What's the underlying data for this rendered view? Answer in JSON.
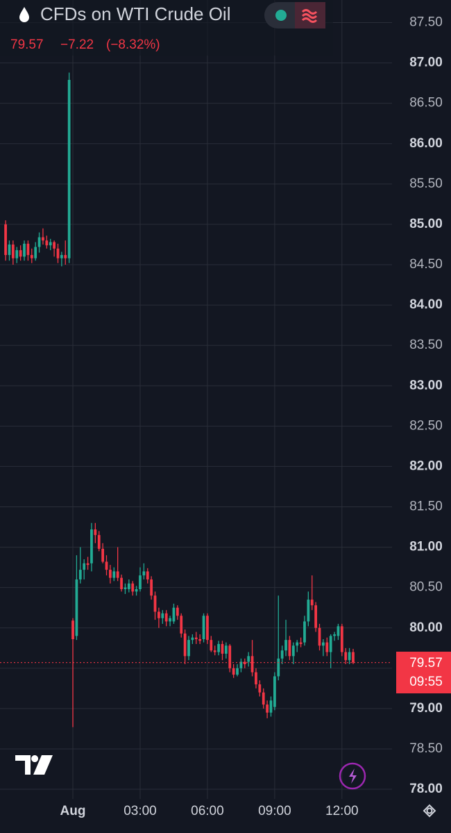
{
  "chart_data": {
    "type": "candlestick",
    "title": "CFDs on WTI Crude Oil",
    "last_price": 79.57,
    "change": "−7.22",
    "change_percent": "(−8.32%)",
    "countdown": "09:55",
    "up_color": "#22ab94",
    "down_color": "#f23645",
    "grid": true,
    "x": [
      -180,
      -170,
      -160,
      -150,
      -140,
      -130,
      -120,
      -110,
      -100,
      -90,
      -80,
      -70,
      -60,
      -50,
      -40,
      -30,
      -20,
      -10,
      0,
      10,
      20,
      30,
      40,
      50,
      60,
      70,
      80,
      90,
      100,
      110,
      120,
      130,
      140,
      150,
      160,
      170,
      180,
      190,
      200,
      210,
      220,
      230,
      240,
      250,
      260,
      270,
      280,
      290,
      300,
      310,
      320,
      330,
      340,
      350,
      360,
      370,
      380,
      390,
      400,
      410,
      420,
      430,
      440,
      450,
      460,
      470,
      480,
      490,
      500,
      510,
      520,
      530,
      540,
      550,
      560,
      570,
      580,
      590,
      600,
      610,
      620,
      630,
      640,
      650,
      660,
      670,
      680,
      690,
      700,
      710,
      720,
      730,
      740,
      750
    ],
    "open": [
      85.0,
      84.62,
      84.75,
      84.58,
      84.68,
      84.6,
      84.76,
      84.62,
      84.58,
      84.72,
      84.84,
      84.8,
      84.74,
      84.78,
      84.7,
      84.58,
      84.62,
      84.58,
      80.09,
      79.9,
      80.6,
      80.72,
      80.8,
      80.8,
      81.22,
      81.15,
      80.98,
      80.82,
      80.72,
      80.62,
      80.7,
      80.62,
      80.48,
      80.48,
      80.55,
      80.45,
      80.48,
      80.65,
      80.7,
      80.6,
      80.4,
      80.2,
      80.12,
      80.18,
      80.08,
      80.08,
      80.25,
      80.15,
      79.93,
      79.65,
      79.85,
      79.88,
      79.86,
      79.86,
      80.15,
      79.85,
      79.72,
      79.7,
      79.8,
      79.68,
      79.78,
      79.5,
      79.42,
      79.5,
      79.58,
      79.58,
      79.65,
      79.45,
      79.3,
      79.2,
      79.05,
      78.95,
      79.02,
      79.4,
      79.62,
      79.72,
      79.85,
      79.65,
      79.78,
      79.82,
      79.82,
      80.08,
      80.35,
      80.28,
      80.0,
      79.78,
      79.82,
      79.7,
      79.9,
      79.9,
      80.02,
      79.7,
      79.6,
      79.7
    ],
    "high": [
      85.05,
      84.8,
      84.8,
      84.72,
      84.74,
      84.8,
      84.8,
      84.7,
      84.78,
      84.9,
      84.95,
      84.86,
      84.82,
      84.8,
      84.76,
      84.66,
      84.8,
      86.88,
      80.12,
      80.9,
      81.0,
      80.85,
      80.88,
      81.3,
      81.3,
      81.2,
      81.05,
      80.9,
      80.78,
      80.75,
      81.0,
      80.66,
      80.55,
      80.6,
      80.58,
      80.52,
      80.75,
      80.8,
      80.74,
      80.64,
      80.45,
      80.25,
      80.22,
      80.22,
      80.15,
      80.3,
      80.28,
      80.18,
      79.98,
      79.9,
      79.92,
      79.95,
      79.92,
      80.18,
      80.18,
      79.9,
      79.78,
      79.84,
      79.84,
      79.82,
      79.8,
      79.55,
      79.55,
      79.62,
      79.62,
      79.7,
      79.85,
      79.5,
      79.35,
      79.25,
      79.1,
      79.15,
      79.45,
      80.4,
      79.78,
      80.1,
      79.9,
      79.82,
      79.85,
      79.88,
      80.15,
      80.45,
      80.65,
      80.32,
      80.05,
      79.86,
      79.88,
      79.92,
      79.95,
      80.05,
      80.05,
      79.75,
      79.75,
      79.74
    ],
    "low": [
      84.55,
      84.55,
      84.5,
      84.52,
      84.55,
      84.55,
      84.55,
      84.52,
      84.55,
      84.65,
      84.75,
      84.7,
      84.68,
      84.6,
      84.52,
      84.48,
      84.5,
      84.52,
      78.77,
      79.85,
      80.55,
      80.6,
      80.72,
      80.7,
      81.05,
      80.95,
      80.8,
      80.65,
      80.55,
      80.58,
      80.58,
      80.45,
      80.42,
      80.44,
      80.4,
      80.4,
      80.45,
      80.6,
      80.55,
      80.35,
      80.1,
      80.0,
      80.05,
      80.02,
      80.02,
      80.05,
      80.1,
      79.88,
      79.55,
      79.6,
      79.8,
      79.8,
      79.8,
      79.82,
      79.8,
      79.7,
      79.66,
      79.66,
      79.6,
      79.62,
      79.45,
      79.38,
      79.4,
      79.45,
      79.5,
      79.52,
      79.4,
      79.25,
      79.15,
      79.0,
      78.88,
      78.9,
      78.98,
      79.35,
      79.55,
      79.65,
      79.6,
      79.55,
      79.7,
      79.76,
      79.78,
      80.02,
      80.22,
      79.95,
      79.72,
      79.65,
      79.65,
      79.5,
      79.84,
      79.85,
      79.65,
      79.55,
      79.55,
      79.55
    ],
    "close": [
      84.62,
      84.75,
      84.58,
      84.68,
      84.6,
      84.76,
      84.62,
      84.58,
      84.72,
      84.84,
      84.8,
      84.74,
      84.78,
      84.7,
      84.58,
      84.62,
      84.58,
      86.79,
      79.86,
      80.6,
      80.72,
      80.8,
      80.78,
      81.22,
      81.15,
      80.98,
      80.82,
      80.72,
      80.62,
      80.7,
      80.62,
      80.48,
      80.5,
      80.55,
      80.45,
      80.48,
      80.65,
      80.7,
      80.6,
      80.4,
      80.2,
      80.12,
      80.18,
      80.08,
      80.12,
      80.25,
      80.15,
      79.93,
      79.65,
      79.85,
      79.88,
      79.86,
      79.84,
      80.15,
      79.85,
      79.72,
      79.7,
      79.8,
      79.68,
      79.78,
      79.5,
      79.42,
      79.5,
      79.58,
      79.55,
      79.65,
      79.45,
      79.3,
      79.2,
      79.05,
      78.95,
      79.1,
      79.4,
      79.62,
      79.72,
      79.85,
      79.65,
      79.78,
      79.82,
      79.8,
      80.08,
      80.35,
      80.28,
      80.0,
      79.78,
      79.82,
      79.7,
      79.9,
      79.92,
      80.02,
      79.7,
      79.6,
      79.7,
      79.57
    ],
    "xlim": [
      -195,
      854
    ],
    "xticks": [
      {
        "value": 0,
        "label": "Aug"
      },
      {
        "value": 180,
        "label": "03:00"
      },
      {
        "value": 360,
        "label": "06:00"
      },
      {
        "value": 540,
        "label": "09:00"
      },
      {
        "value": 720,
        "label": "12:00"
      }
    ],
    "ylim": [
      77.88,
      87.78
    ],
    "yticks": [
      {
        "value": 78,
        "label": "78.00"
      },
      {
        "value": 78.5,
        "label": "78.50"
      },
      {
        "value": 79,
        "label": "79.00"
      },
      {
        "value": 79.5,
        "label": "79.50"
      },
      {
        "value": 80,
        "label": "80.00"
      },
      {
        "value": 80.5,
        "label": "80.50"
      },
      {
        "value": 81,
        "label": "81.00"
      },
      {
        "value": 81.5,
        "label": "81.50"
      },
      {
        "value": 82,
        "label": "82.00"
      },
      {
        "value": 82.5,
        "label": "82.50"
      },
      {
        "value": 83,
        "label": "83.00"
      },
      {
        "value": 83.5,
        "label": "83.50"
      },
      {
        "value": 84,
        "label": "84.00"
      },
      {
        "value": 84.5,
        "label": "84.50"
      },
      {
        "value": 85,
        "label": "85.00"
      },
      {
        "value": 85.5,
        "label": "85.50"
      },
      {
        "value": 86,
        "label": "86.00"
      },
      {
        "value": 86.5,
        "label": "86.50"
      },
      {
        "value": 87,
        "label": "87.00"
      },
      {
        "value": 87.5,
        "label": "87.50"
      }
    ]
  }
}
